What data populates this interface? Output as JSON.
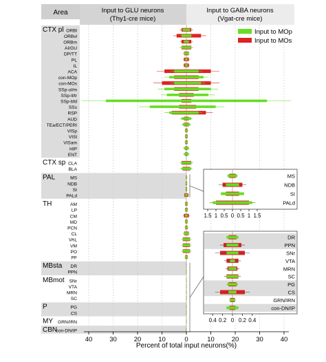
{
  "header": {
    "area_label": "Area",
    "glu_title_1": "Input to GLU neurons",
    "glu_title_2": "(Thy1-cre mice)",
    "gaba_title_1": "Input to GABA neurons",
    "gaba_title_2": "(Vgat-cre mice)"
  },
  "legend": {
    "mop": "Input to MOp",
    "mos": "Input to MOs"
  },
  "colors": {
    "mop": "#66dd22",
    "mos": "#dd2222",
    "band": "#dcdcdc",
    "header_left": "#d4d4d4",
    "header_right": "#ececec"
  },
  "chart_data": [
    {
      "type": "bar",
      "orientation": "horizontal-mirrored",
      "xlabel": "Percent of total input neurons(%)",
      "xticks": [
        "40",
        "30",
        "20",
        "10",
        "0",
        "10",
        "20",
        "30",
        "40"
      ],
      "xlim": [
        -40,
        40
      ],
      "groups": [
        {
          "name": "CTX pl",
          "rows": [
            "ORBl",
            "ORBvl",
            "ORBm",
            "AI/GU",
            "DP/TT",
            "PL",
            "IL",
            "ACA",
            "con-MOp",
            "con-MOs",
            "SSp-ul/m",
            "SSp-ll/tr",
            "SSp-bfd",
            "SSs",
            "RSP",
            "AUD",
            "TEa/ECT/PERI",
            "VISp",
            "VISl",
            "VISam",
            "HIP",
            "ENT"
          ]
        },
        {
          "name": "CTX sp",
          "rows": [
            "CLA",
            "BLA"
          ]
        },
        {
          "name": "PAL",
          "rows": [
            "MS",
            "NDB",
            "SI",
            "PALd"
          ]
        },
        {
          "name": "TH",
          "rows": [
            "AM",
            "LP",
            "CM",
            "MD",
            "PCN",
            "CL",
            "VAL",
            "VM",
            "PO",
            "PF"
          ]
        },
        {
          "name": "MBsta",
          "rows": [
            "DR",
            "PPN"
          ]
        },
        {
          "name": "MBmot",
          "rows": [
            "SNr",
            "VTA",
            "MRN",
            "SC"
          ]
        },
        {
          "name": "P",
          "rows": [
            "PG",
            "CS"
          ]
        },
        {
          "name": "MY",
          "rows": [
            "GRN/IRN"
          ]
        },
        {
          "name": "CBN",
          "rows": [
            "con-DN/IP"
          ]
        }
      ],
      "series": [
        {
          "name": "Input to MOp",
          "glu": [
            1.5,
            2,
            1,
            2,
            1,
            0.5,
            0.5,
            5,
            7,
            5,
            9,
            8,
            33,
            15,
            7,
            2,
            1.5,
            0.5,
            0.5,
            0.5,
            1,
            1,
            2,
            2,
            0.2,
            0.3,
            0.3,
            0.5,
            0.5,
            0.5,
            0.5,
            0.5,
            0.5,
            1,
            1.5,
            1.5,
            1.5,
            0.5,
            0.1,
            0.1,
            0.1,
            0.1,
            0.1,
            0.1,
            0.1,
            0.1,
            0.1,
            0.1
          ],
          "gaba": [
            1.5,
            2,
            1,
            2,
            1,
            0.5,
            0.5,
            5,
            7,
            6,
            10,
            9,
            33,
            12,
            5,
            2,
            1.5,
            0.5,
            0.5,
            0.5,
            1,
            1,
            2,
            2,
            0.3,
            0.3,
            0.3,
            0.5,
            0.5,
            0.5,
            0.5,
            0.5,
            0.5,
            1,
            1.5,
            1.5,
            1.5,
            0.5,
            0.1,
            0.1,
            0.1,
            0.1,
            0.1,
            0.1,
            0.1,
            0.1,
            0.1,
            0.1
          ]
        },
        {
          "name": "Input to MOs",
          "glu": [
            2,
            4,
            2,
            2,
            1,
            1,
            1,
            9,
            5,
            10,
            5,
            3,
            2,
            3,
            6,
            1,
            1,
            0.5,
            0.5,
            0.5,
            0.5,
            0.5,
            2,
            1.5,
            0.2,
            0.3,
            0.3,
            0.8,
            0.5,
            0.5,
            1,
            0.5,
            0.5,
            1,
            1.5,
            1.5,
            1.5,
            0.5,
            0.1,
            0.1,
            0.1,
            0.1,
            0.1,
            0.1,
            0.1,
            0.1,
            0.1,
            0.1
          ],
          "gaba": [
            2,
            6,
            2,
            2,
            1,
            1,
            1,
            10,
            5,
            10,
            5,
            3,
            2,
            4,
            8,
            1,
            1,
            0.5,
            0.5,
            0.5,
            0.5,
            0.5,
            2,
            1.5,
            0.2,
            0.3,
            0.3,
            0.8,
            0.5,
            0.5,
            1,
            0.5,
            0.5,
            1,
            1.5,
            1.5,
            1.5,
            0.5,
            0.1,
            0.1,
            0.1,
            0.1,
            0.1,
            0.1,
            0.1,
            0.1,
            0.1,
            0.1
          ]
        }
      ]
    },
    {
      "type": "bar",
      "orientation": "horizontal-mirrored",
      "inset": "PAL",
      "categories": [
        "MS",
        "NDB",
        "SI",
        "PALd"
      ],
      "xticks": [
        "1.5",
        "1",
        "0.5",
        "0",
        "0.5",
        "1",
        "1.5"
      ],
      "xlim": [
        -1.5,
        1.5
      ],
      "series": [
        {
          "name": "Input to MOp",
          "values": [
            0.3,
            0.4,
            0.7,
            1.2
          ]
        },
        {
          "name": "Input to MOs",
          "values": [
            0.2,
            0.6,
            0.4,
            1.0
          ]
        }
      ]
    },
    {
      "type": "bar",
      "orientation": "horizontal-mirrored",
      "inset": "MB/P/MY/CBN",
      "categories": [
        "DR",
        "PPN",
        "SNr",
        "VTA",
        "MRN",
        "SC",
        "PG",
        "CS",
        "GRN/IRN",
        "con-DN/IP"
      ],
      "xticks": [
        "0.4",
        "0.2",
        "0",
        "0.2",
        "0.4"
      ],
      "xlim": [
        -0.5,
        0.5
      ],
      "series": [
        {
          "name": "Input to MOp",
          "values": [
            0.12,
            0.12,
            0.12,
            0.05,
            0.08,
            0.12,
            0.1,
            0.08,
            0.05,
            0.12
          ]
        },
        {
          "name": "Input to MOs",
          "values": [
            0.08,
            0.18,
            0.25,
            0.12,
            0.1,
            0.12,
            0.08,
            0.25,
            0.05,
            0.06
          ]
        }
      ]
    }
  ]
}
